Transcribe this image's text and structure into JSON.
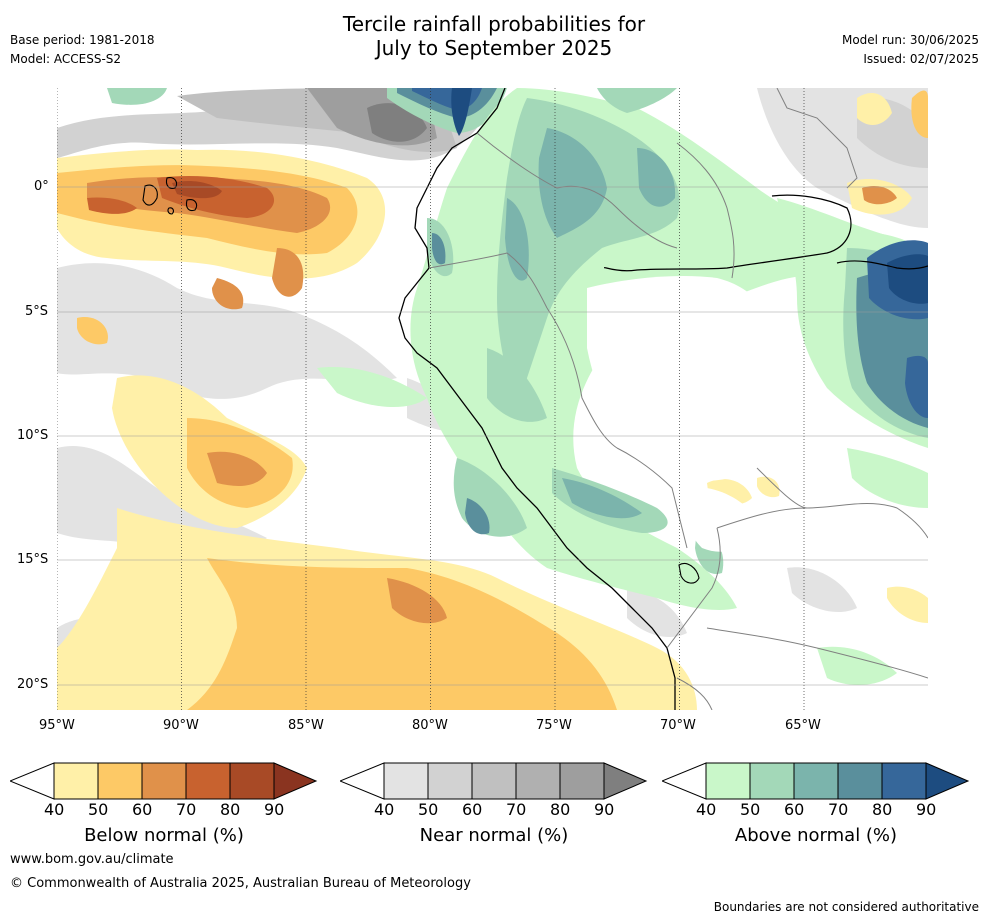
{
  "header": {
    "title_line1": "Tercile rainfall probabilities for",
    "title_line2": "July to September 2025",
    "base_period": "Base period: 1981-2018",
    "model": "Model: ACCESS-S2",
    "model_run": "Model run: 30/06/2025",
    "issued": "Issued: 02/07/2025"
  },
  "map": {
    "lon_labels": [
      "95°W",
      "90°W",
      "85°W",
      "80°W",
      "75°W",
      "70°W",
      "65°W"
    ],
    "lat_labels": [
      "0°",
      "5°S",
      "10°S",
      "15°S",
      "20°S"
    ],
    "colors": {
      "ocean_white": "#ffffff",
      "coast": "#000000",
      "border": "#808080",
      "grid": "#333333"
    }
  },
  "colorbars": [
    {
      "label": "Below normal (%)",
      "ticks": [
        "40",
        "50",
        "60",
        "70",
        "80",
        "90"
      ],
      "colors": [
        "#fff0a8",
        "#fdc966",
        "#e0914a",
        "#c8622f",
        "#a84a26",
        "#8a3420"
      ]
    },
    {
      "label": "Near normal (%)",
      "ticks": [
        "40",
        "50",
        "60",
        "70",
        "80",
        "90"
      ],
      "colors": [
        "#e3e3e3",
        "#d2d2d2",
        "#c0c0c0",
        "#b0b0b0",
        "#9e9e9e",
        "#7f7f7f"
      ]
    },
    {
      "label": "Above normal (%)",
      "ticks": [
        "40",
        "50",
        "60",
        "70",
        "80",
        "90"
      ],
      "colors": [
        "#c9f7c9",
        "#a3d8b8",
        "#7bb4ac",
        "#5a8f9c",
        "#36679a",
        "#1d4c80"
      ]
    }
  ],
  "footer": {
    "website": "www.bom.gov.au/climate",
    "copyright": "© Commonwealth of Australia 2025, Australian Bureau of Meteorology",
    "disclaimer": "Boundaries are not considered authoritative"
  }
}
